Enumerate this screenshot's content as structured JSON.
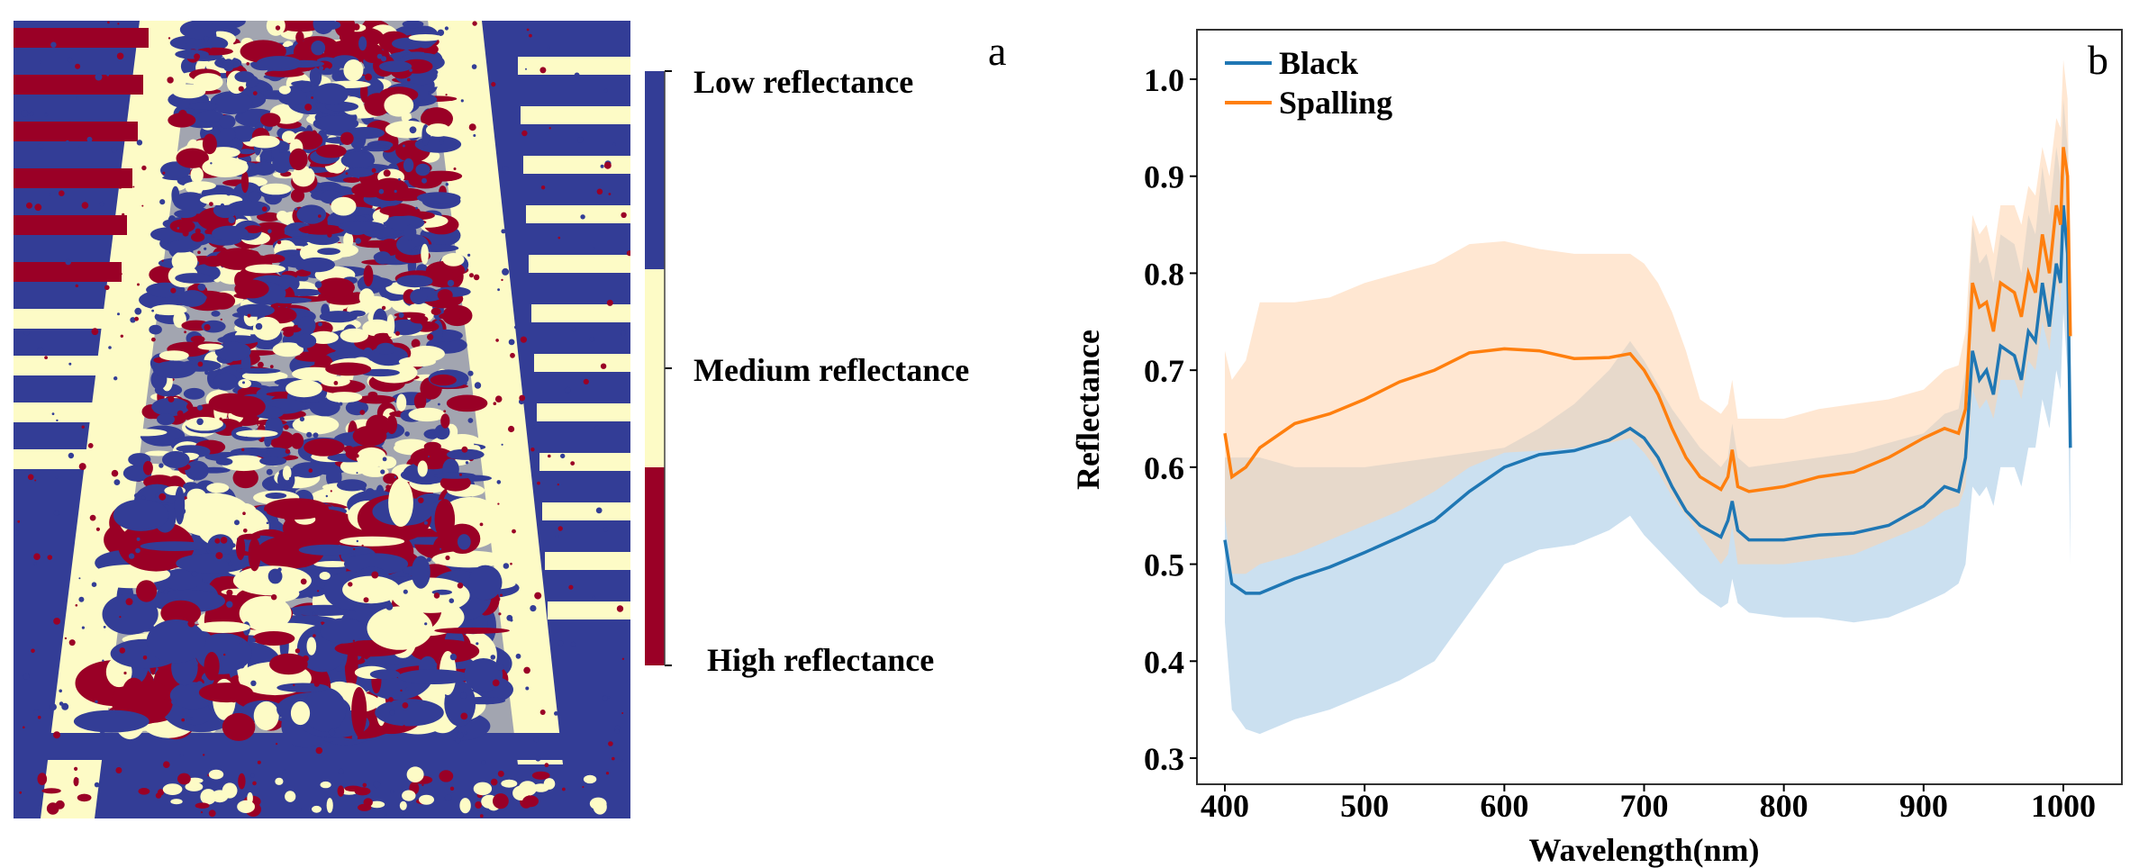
{
  "panel_a": {
    "letter": "a",
    "colorbar": {
      "labels": [
        "Low reflectance",
        "Medium reflectance",
        "High reflectance"
      ],
      "colors": [
        "#333d96",
        "#fdfbc6",
        "#9a0026"
      ]
    }
  },
  "chart_data": {
    "type": "line",
    "panel_letter": "b",
    "xlabel": "Wavelength(nm)",
    "ylabel": "Reflectance",
    "xlim": [
      370,
      1035
    ],
    "ylim": [
      0.29,
      1.06
    ],
    "xticks": [
      400,
      500,
      600,
      700,
      800,
      900,
      1000
    ],
    "yticks": [
      0.3,
      0.4,
      0.5,
      0.6,
      0.7,
      0.8,
      0.9,
      1.0
    ],
    "ytick_labels": [
      "0.3",
      "0.4",
      "0.5",
      "0.6",
      "0.7",
      "0.8",
      "0.9",
      "1.0"
    ],
    "grid": false,
    "legend_position": "top-left",
    "x": [
      400,
      405,
      415,
      425,
      450,
      475,
      500,
      525,
      550,
      575,
      600,
      625,
      650,
      675,
      690,
      700,
      710,
      720,
      730,
      740,
      755,
      760,
      763,
      767,
      775,
      800,
      825,
      850,
      875,
      900,
      915,
      925,
      930,
      935,
      940,
      945,
      950,
      955,
      965,
      970,
      975,
      980,
      985,
      990,
      995,
      998,
      1000,
      1003,
      1005
    ],
    "series": [
      {
        "name": "Black",
        "color": "#1f77b4",
        "band_color": "#a9cbe6",
        "values": [
          0.525,
          0.48,
          0.47,
          0.47,
          0.485,
          0.497,
          0.512,
          0.528,
          0.545,
          0.575,
          0.6,
          0.613,
          0.617,
          0.628,
          0.64,
          0.63,
          0.61,
          0.58,
          0.555,
          0.54,
          0.528,
          0.545,
          0.565,
          0.535,
          0.525,
          0.525,
          0.53,
          0.532,
          0.54,
          0.56,
          0.58,
          0.575,
          0.61,
          0.72,
          0.69,
          0.7,
          0.675,
          0.725,
          0.715,
          0.69,
          0.74,
          0.73,
          0.79,
          0.745,
          0.81,
          0.79,
          0.87,
          0.82,
          0.62
        ],
        "lower": [
          0.44,
          0.35,
          0.33,
          0.325,
          0.34,
          0.35,
          0.365,
          0.38,
          0.4,
          0.45,
          0.5,
          0.515,
          0.52,
          0.535,
          0.55,
          0.53,
          0.515,
          0.5,
          0.485,
          0.47,
          0.455,
          0.46,
          0.485,
          0.46,
          0.45,
          0.445,
          0.445,
          0.44,
          0.445,
          0.46,
          0.47,
          0.48,
          0.5,
          0.58,
          0.57,
          0.58,
          0.56,
          0.6,
          0.6,
          0.58,
          0.62,
          0.62,
          0.67,
          0.64,
          0.7,
          0.68,
          0.76,
          0.7,
          0.5
        ],
        "upper": [
          0.61,
          0.61,
          0.61,
          0.61,
          0.6,
          0.6,
          0.6,
          0.605,
          0.61,
          0.615,
          0.62,
          0.64,
          0.665,
          0.7,
          0.73,
          0.71,
          0.685,
          0.66,
          0.64,
          0.62,
          0.6,
          0.61,
          0.645,
          0.61,
          0.6,
          0.605,
          0.61,
          0.615,
          0.625,
          0.635,
          0.655,
          0.66,
          0.7,
          0.85,
          0.81,
          0.82,
          0.79,
          0.84,
          0.83,
          0.8,
          0.86,
          0.84,
          0.91,
          0.86,
          0.93,
          0.9,
          0.98,
          0.93,
          0.75
        ]
      },
      {
        "name": "Spalling",
        "color": "#ff7f0e",
        "band_color": "#ffd3ad",
        "values": [
          0.635,
          0.59,
          0.6,
          0.62,
          0.645,
          0.655,
          0.67,
          0.688,
          0.7,
          0.718,
          0.722,
          0.72,
          0.712,
          0.713,
          0.717,
          0.7,
          0.675,
          0.64,
          0.61,
          0.59,
          0.577,
          0.59,
          0.618,
          0.58,
          0.575,
          0.58,
          0.59,
          0.595,
          0.61,
          0.63,
          0.64,
          0.635,
          0.66,
          0.79,
          0.765,
          0.77,
          0.74,
          0.79,
          0.78,
          0.755,
          0.8,
          0.78,
          0.84,
          0.8,
          0.87,
          0.85,
          0.93,
          0.9,
          0.735
        ],
        "lower": [
          0.55,
          0.49,
          0.49,
          0.5,
          0.51,
          0.525,
          0.54,
          0.555,
          0.575,
          0.6,
          0.615,
          0.617,
          0.62,
          0.625,
          0.63,
          0.615,
          0.595,
          0.57,
          0.55,
          0.53,
          0.5,
          0.51,
          0.54,
          0.5,
          0.5,
          0.5,
          0.505,
          0.51,
          0.525,
          0.54,
          0.555,
          0.56,
          0.58,
          0.68,
          0.66,
          0.67,
          0.65,
          0.69,
          0.69,
          0.67,
          0.71,
          0.7,
          0.75,
          0.72,
          0.79,
          0.77,
          0.85,
          0.8,
          0.65
        ],
        "upper": [
          0.72,
          0.69,
          0.71,
          0.77,
          0.77,
          0.775,
          0.79,
          0.8,
          0.81,
          0.83,
          0.833,
          0.825,
          0.82,
          0.82,
          0.82,
          0.81,
          0.79,
          0.76,
          0.72,
          0.67,
          0.655,
          0.665,
          0.69,
          0.65,
          0.65,
          0.65,
          0.66,
          0.665,
          0.67,
          0.68,
          0.7,
          0.705,
          0.74,
          0.86,
          0.84,
          0.85,
          0.82,
          0.87,
          0.87,
          0.85,
          0.89,
          0.88,
          0.93,
          0.9,
          0.96,
          0.95,
          1.02,
          0.98,
          0.8
        ]
      }
    ]
  }
}
